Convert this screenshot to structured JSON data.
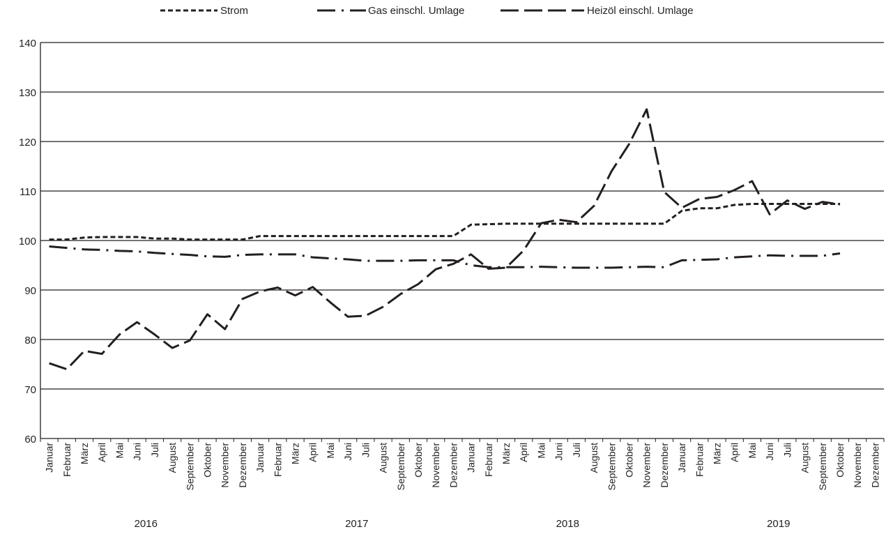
{
  "chart_data": {
    "type": "line",
    "title": "",
    "xlabel": "",
    "ylabel": "",
    "ylim": [
      60,
      140
    ],
    "yticks": [
      "60",
      "70",
      "80",
      "90",
      "100",
      "110",
      "120",
      "130",
      "140"
    ],
    "grid": true,
    "legend_position": "top",
    "categories": [
      "Januar",
      "Februar",
      "März",
      "April",
      "Mai",
      "Juni",
      "Juli",
      "August",
      "September",
      "Oktober",
      "November",
      "Dezember",
      "Januar",
      "Februar",
      "März",
      "April",
      "Mai",
      "Juni",
      "Juli",
      "August",
      "September",
      "Oktober",
      "November",
      "Dezember",
      "Januar",
      "Februar",
      "März",
      "April",
      "Mai",
      "Juni",
      "Juli",
      "August",
      "September",
      "Oktober",
      "November",
      "Dezember",
      "Januar",
      "Februar",
      "März",
      "April",
      "Mai",
      "Juni",
      "Juli",
      "August",
      "September",
      "Oktober",
      "November",
      "Dezember"
    ],
    "years": [
      "2016",
      "2017",
      "2018",
      "2019"
    ],
    "series": [
      {
        "name": "Strom",
        "style": "dotted",
        "values": [
          100.2,
          100.2,
          100.6,
          100.7,
          100.7,
          100.7,
          100.4,
          100.4,
          100.2,
          100.2,
          100.2,
          100.2,
          100.9,
          100.9,
          100.9,
          100.9,
          100.9,
          100.9,
          100.9,
          100.9,
          100.9,
          100.9,
          100.9,
          100.9,
          103.2,
          103.3,
          103.4,
          103.4,
          103.4,
          103.4,
          103.4,
          103.4,
          103.4,
          103.4,
          103.4,
          103.4,
          106.0,
          106.5,
          106.5,
          107.2,
          107.4,
          107.4,
          107.4,
          107.4,
          107.4,
          107.4,
          null,
          null
        ]
      },
      {
        "name": "Gas einschl. Umlage",
        "style": "dashdot",
        "values": [
          98.8,
          98.5,
          98.2,
          98.1,
          97.9,
          97.8,
          97.5,
          97.3,
          97.1,
          96.8,
          96.7,
          97.1,
          97.2,
          97.2,
          97.2,
          96.6,
          96.4,
          96.2,
          95.9,
          95.9,
          95.9,
          96.0,
          96.0,
          96.0,
          95.0,
          94.6,
          94.6,
          94.6,
          94.7,
          94.6,
          94.5,
          94.5,
          94.5,
          94.6,
          94.7,
          94.6,
          96.0,
          96.1,
          96.2,
          96.6,
          96.8,
          97.0,
          96.9,
          96.9,
          96.9,
          97.4,
          null,
          null
        ]
      },
      {
        "name": "Heizöl einschl. Umlage",
        "style": "dashed",
        "values": [
          75.2,
          74.0,
          77.7,
          77.1,
          81.0,
          83.5,
          81.0,
          78.3,
          79.8,
          85.1,
          82.1,
          88.2,
          89.7,
          90.5,
          88.9,
          90.6,
          87.5,
          84.6,
          84.8,
          86.6,
          89.2,
          91.2,
          94.2,
          95.3,
          97.2,
          94.3,
          94.5,
          98.0,
          103.5,
          104.2,
          103.7,
          107.0,
          114.0,
          119.5,
          126.5,
          109.8,
          106.6,
          108.4,
          108.8,
          110.2,
          112.0,
          105.3,
          108.1,
          106.4,
          107.8,
          107.3,
          null,
          null
        ]
      }
    ]
  }
}
